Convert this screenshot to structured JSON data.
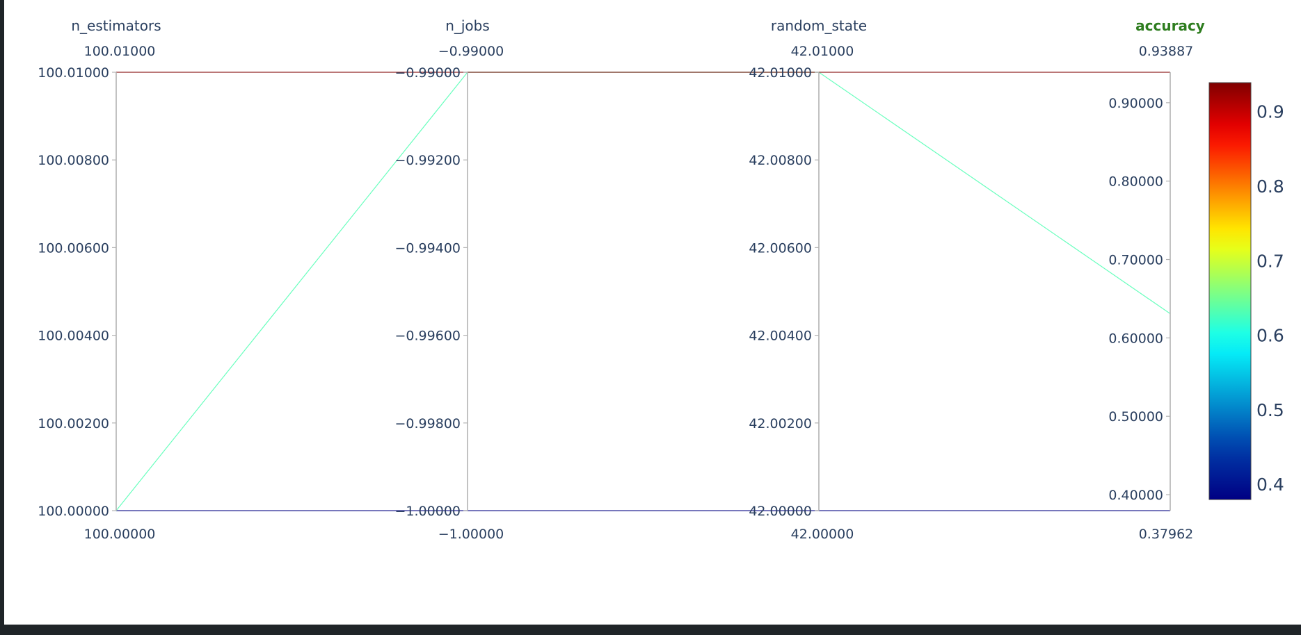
{
  "chart_data": {
    "type": "parallel_coordinates",
    "color_scale": "Jet",
    "color_range": [
      0.37962,
      0.93887
    ],
    "colorbar_ticks": [
      "0.4",
      "0.5",
      "0.6",
      "0.7",
      "0.8",
      "0.9"
    ],
    "colorbar_tick_values": [
      0.4,
      0.5,
      0.6,
      0.7,
      0.8,
      0.9
    ],
    "dimensions": [
      {
        "name": "n_estimators",
        "range": [
          100.0,
          100.01
        ],
        "top_label": "100.01000",
        "bottom_label": "100.00000",
        "ticks": [
          "100.00000",
          "100.00200",
          "100.00400",
          "100.00600",
          "100.00800",
          "100.01000"
        ],
        "tick_values": [
          100.0,
          100.002,
          100.004,
          100.006,
          100.008,
          100.01
        ],
        "active": false
      },
      {
        "name": "n_jobs",
        "range": [
          -1.0,
          -0.99
        ],
        "top_label": "−0.99000",
        "bottom_label": "−1.00000",
        "ticks": [
          "−1.00000",
          "−0.99800",
          "−0.99600",
          "−0.99400",
          "−0.99200",
          "−0.99000"
        ],
        "tick_values": [
          -1.0,
          -0.998,
          -0.996,
          -0.994,
          -0.992,
          -0.99
        ],
        "active": false
      },
      {
        "name": "random_state",
        "range": [
          42.0,
          42.01
        ],
        "top_label": "42.01000",
        "bottom_label": "42.00000",
        "ticks": [
          "42.00000",
          "42.00200",
          "42.00400",
          "42.00600",
          "42.00800",
          "42.01000"
        ],
        "tick_values": [
          42.0,
          42.002,
          42.004,
          42.006,
          42.008,
          42.01
        ],
        "active": false
      },
      {
        "name": "accuracy",
        "range": [
          0.37962,
          0.93887
        ],
        "top_label": "0.93887",
        "bottom_label": "0.37962",
        "ticks": [
          "0.40000",
          "0.50000",
          "0.60000",
          "0.70000",
          "0.80000",
          "0.90000"
        ],
        "tick_values": [
          0.4,
          0.5,
          0.6,
          0.7,
          0.8,
          0.9
        ],
        "active": true
      }
    ],
    "lines": [
      {
        "values": [
          100.0,
          -1.0,
          42.0,
          0.37962
        ],
        "color_value": 0.37962
      },
      {
        "values": [
          100.0,
          -0.99,
          42.01,
          0.6309
        ],
        "color_value": 0.6309
      },
      {
        "values": [
          100.01,
          -0.99,
          42.01,
          0.93887
        ],
        "color_value": 0.93887
      }
    ]
  }
}
